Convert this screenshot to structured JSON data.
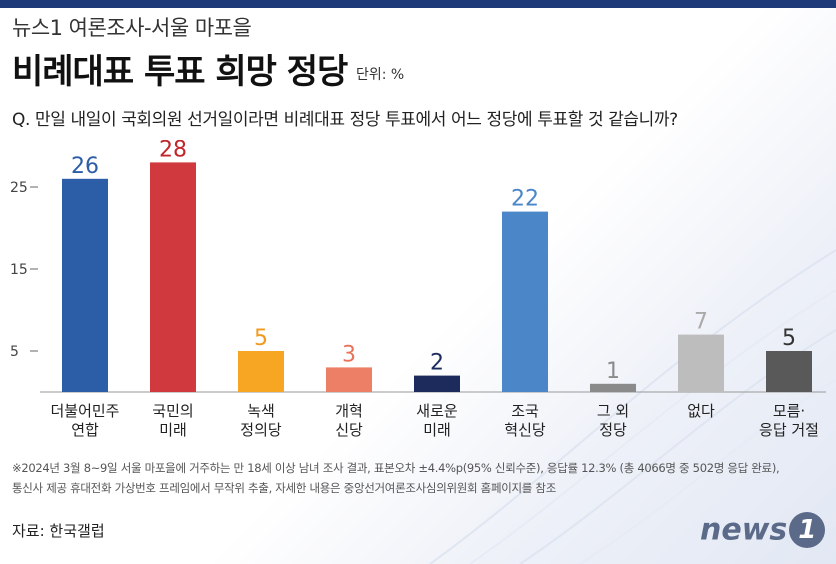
{
  "header": {
    "subtitle": "뉴스1 여론조사-서울 마포을",
    "title": "비례대표 투표 희망 정당",
    "unit": "단위: %"
  },
  "question": "Q. 만일 내일이 국회의원 선거일이라면 비례대표 정당 투표에서 어느 정당에 투표할 것 같습니까?",
  "footnote": {
    "line1": "※2024년 3월 8~9일 서울 마포을에 거주하는 만 18세 이상 남녀 조사 결과, 표본오차 ±4.4%p(95% 신뢰수준), 응답률 12.3% (총 4066명 중 502명 응답 완료),",
    "line2": "통신사 제공 휴대전화 가상번호 프레임에서 무작위 추출, 자세한 내용은 중앙선거여론조사심의위원회 홈페이지를 참조"
  },
  "source": "자료: 한국갤럽",
  "logo": {
    "text": "news",
    "badge": "1"
  },
  "chart_data": {
    "type": "bar",
    "categories": [
      [
        "더불어민주",
        "연합"
      ],
      [
        "국민의",
        "미래"
      ],
      [
        "녹색",
        "정의당"
      ],
      [
        "개혁",
        "신당"
      ],
      [
        "새로운",
        "미래"
      ],
      [
        "조국",
        "혁신당"
      ],
      [
        "그 외",
        "정당"
      ],
      [
        "없다"
      ],
      [
        "모름·",
        "응답 거절"
      ]
    ],
    "values": [
      26,
      28,
      5,
      3,
      2,
      22,
      1,
      7,
      5
    ],
    "bar_colors": [
      "#2c5ea8",
      "#d0393e",
      "#f6a623",
      "#ec7f66",
      "#1d2b5c",
      "#4a86c8",
      "#8a8a8a",
      "#bdbdbd",
      "#595959"
    ],
    "label_colors": [
      "#2c5ea8",
      "#c0262c",
      "#f09a1e",
      "#e9735a",
      "#1d2b5c",
      "#4a86c8",
      "#8a8a8a",
      "#aaaaaa",
      "#333333"
    ],
    "yticks": [
      5,
      15,
      25
    ],
    "ylim": [
      0,
      30
    ],
    "grid": false,
    "title": "비례대표 투표 희망 정당",
    "ylabel": "단위: %"
  }
}
